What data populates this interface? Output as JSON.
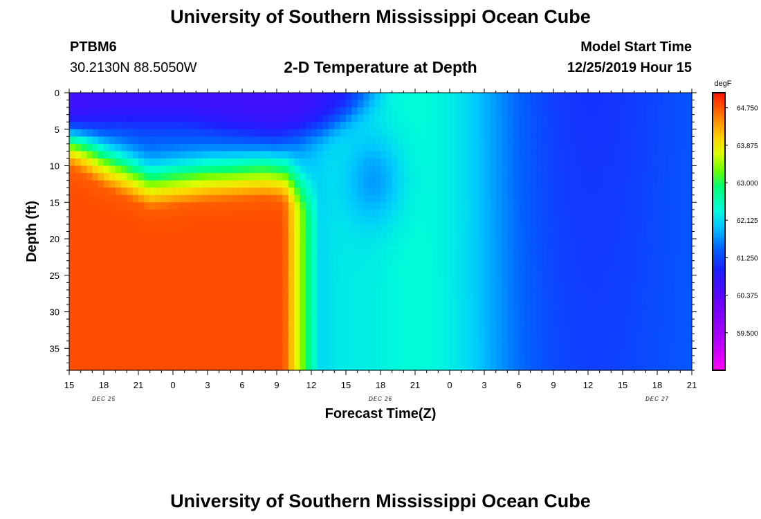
{
  "header": {
    "title": "University of Southern Mississippi Ocean Cube",
    "station_id": "PTBM6",
    "station_coords": "30.2130N 88.5050W",
    "subtitle": "2-D Temperature at Depth",
    "model_start_label": "Model Start Time",
    "model_start_value": "12/25/2019 Hour 15"
  },
  "footer": {
    "title": "University of Southern Mississippi Ocean Cube"
  },
  "chart_data": {
    "type": "heatmap",
    "title": "2-D Temperature at Depth",
    "xlabel": "Forecast Time(Z)",
    "ylabel": "Depth (ft)",
    "x_tick_labels": [
      "15",
      "18",
      "21",
      "0",
      "3",
      "6",
      "9",
      "12",
      "15",
      "18",
      "21",
      "0",
      "3",
      "6",
      "9",
      "12",
      "15",
      "18",
      "21"
    ],
    "x_date_labels": [
      {
        "label": "DEC 25",
        "hour": 3
      },
      {
        "label": "DEC 26",
        "hour": 27
      },
      {
        "label": "DEC 27",
        "hour": 51
      }
    ],
    "x_range_hours": [
      0,
      54
    ],
    "y_ticks": [
      0,
      5,
      10,
      15,
      20,
      25,
      30,
      35
    ],
    "ylim": [
      0,
      38
    ],
    "y_inverted": true,
    "colorbar": {
      "unit": "degF",
      "min": 58.625,
      "max": 65.1,
      "tick_values": [
        64.75,
        63.875,
        63.0,
        62.125,
        61.25,
        60.375,
        59.5
      ],
      "tick_labels": [
        "64.750",
        "63.875",
        "63.000",
        "62.125",
        "61.250",
        "60.375",
        "59.500"
      ]
    },
    "grid": false
  }
}
